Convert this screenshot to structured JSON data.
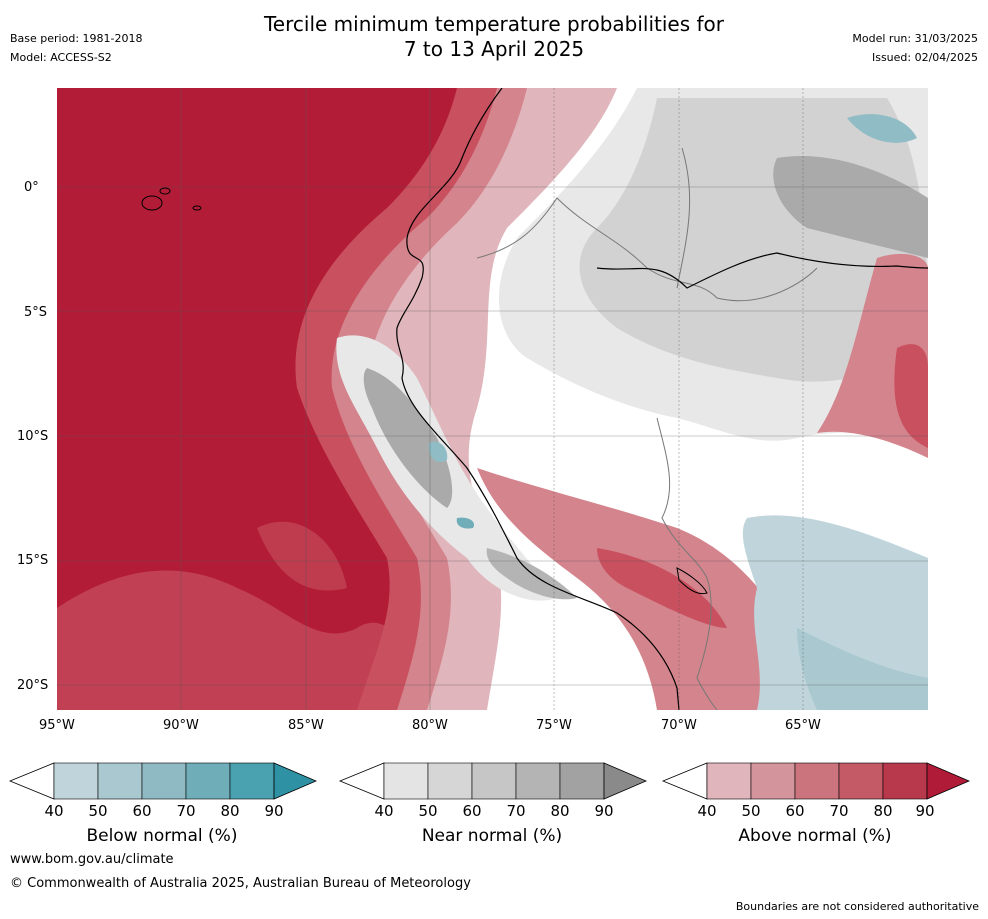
{
  "header": {
    "base_period": "Base period: 1981-2018",
    "model": "Model: ACCESS-S2",
    "title_line1": "Tercile minimum temperature probabilities for",
    "title_line2": "7 to 13 April 2025",
    "model_run": "Model run: 31/03/2025",
    "issued": "Issued: 02/04/2025"
  },
  "map": {
    "lat_labels": [
      "0°",
      "5°S",
      "10°S",
      "15°S",
      "20°S"
    ],
    "lon_labels": [
      "95°W",
      "90°W",
      "85°W",
      "80°W",
      "75°W",
      "70°W",
      "65°W"
    ],
    "colors": {
      "ocean_high": "#b31c37",
      "above_80": "#c9505f",
      "above_70": "#d4848c",
      "above_60": "#e0b5bb",
      "near_40": "#e8e8e8",
      "near_60": "#d2d2d2",
      "near_80": "#aaaaaa",
      "below_40": "#bfd5db",
      "below_60": "#8fbcc5",
      "land_white": "#ffffff"
    }
  },
  "colorbars": [
    {
      "label": "Below normal (%)",
      "ticks": [
        "40",
        "50",
        "60",
        "70",
        "80",
        "90"
      ],
      "colors": [
        "#bfd5db",
        "#a9c8cf",
        "#8fbac4",
        "#6faeb9",
        "#4aa1b0",
        "#2e91a4"
      ]
    },
    {
      "label": "Near normal (%)",
      "ticks": [
        "40",
        "50",
        "60",
        "70",
        "80",
        "90"
      ],
      "colors": [
        "#e4e4e4",
        "#d6d6d6",
        "#c6c6c6",
        "#b4b4b4",
        "#a2a2a2",
        "#8a8a8a"
      ]
    },
    {
      "label": "Above normal (%)",
      "ticks": [
        "40",
        "50",
        "60",
        "70",
        "80",
        "90"
      ],
      "colors": [
        "#e0b5bb",
        "#d4949b",
        "#cb747d",
        "#c45a66",
        "#b8384c",
        "#b01c37"
      ]
    }
  ],
  "footer": {
    "website": "www.bom.gov.au/climate",
    "copyright": "© Commonwealth of Australia 2025, Australian Bureau of Meteorology",
    "disclaimer": "Boundaries are not considered authoritative"
  }
}
